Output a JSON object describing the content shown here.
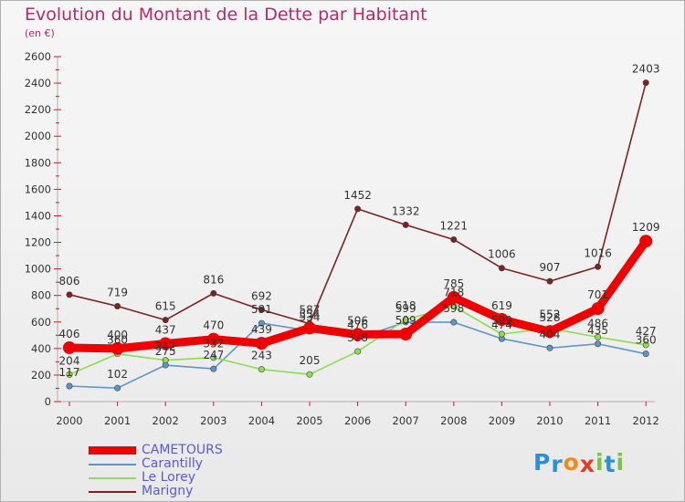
{
  "chart_data": {
    "type": "line",
    "title": "Evolution du Montant de la Dette par Habitant",
    "unit_label": "(en €)",
    "x": [
      "2000",
      "2001",
      "2002",
      "2003",
      "2004",
      "2005",
      "2006",
      "2007",
      "2008",
      "2009",
      "2010",
      "2011",
      "2012"
    ],
    "ylim": [
      0,
      2600
    ],
    "yticks": [
      0,
      200,
      400,
      600,
      800,
      1000,
      1200,
      1400,
      1600,
      1800,
      2000,
      2200,
      2400,
      2600
    ],
    "grid": false,
    "legend_position": "bottom-left",
    "series": [
      {
        "name": "CAMETOURS",
        "color": "#ee0000",
        "values": [
          406,
          400,
          437,
          470,
          439,
          554,
          506,
          509,
          785,
          619,
          528,
          701,
          1209
        ]
      },
      {
        "name": "Carantilly",
        "color": "#5e95c8",
        "values": [
          117,
          102,
          275,
          247,
          591,
          534,
          476,
          599,
          598,
          474,
          404,
          435,
          360
        ]
      },
      {
        "name": "Le Lorey",
        "color": "#8fdc50",
        "values": [
          204,
          360,
          312,
          332,
          243,
          205,
          378,
          618,
          718,
          509,
          552,
          486,
          427
        ]
      },
      {
        "name": "Marigny",
        "color": "#7b2323",
        "values": [
          806,
          719,
          615,
          816,
          692,
          587,
          1452,
          1332,
          1221,
          1006,
          907,
          1016,
          2403
        ]
      }
    ]
  },
  "logo": {
    "text": "Proxiti",
    "letters": [
      "P",
      "r",
      "o",
      "x",
      "i",
      "t",
      "i"
    ],
    "colors": [
      "#2a8fd6",
      "#2a8fd6",
      "#f08a1c",
      "#e23b2a",
      "#7fc242",
      "#2a8fd6",
      "#7fc242"
    ]
  }
}
